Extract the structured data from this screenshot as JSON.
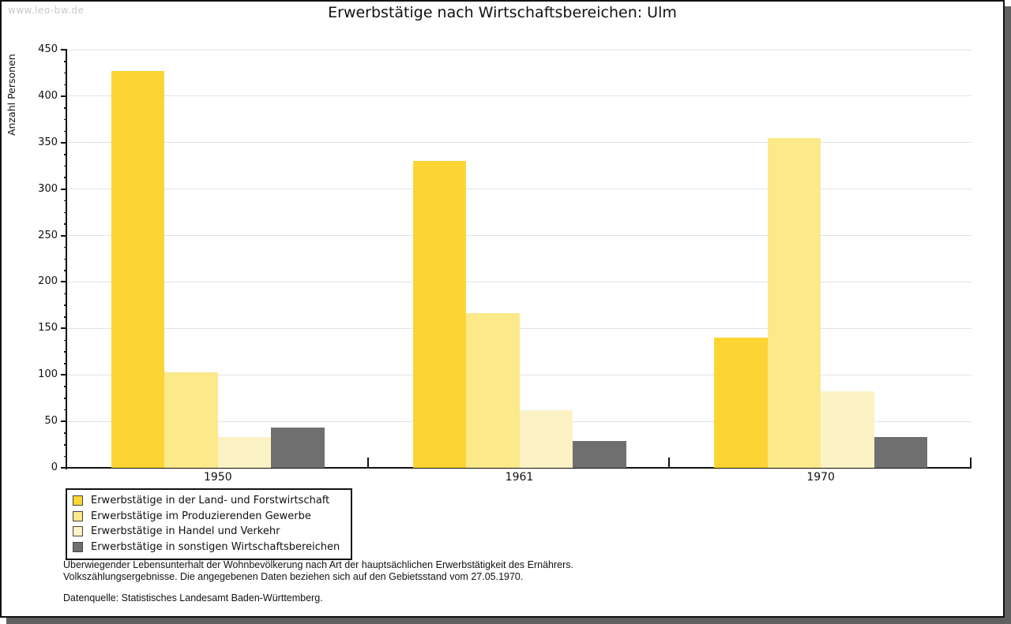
{
  "watermark": "www.leo-bw.de",
  "title": "Erwerbstätige nach Wirtschaftsbereichen: Ulm",
  "chart_data": {
    "type": "bar",
    "title": "Erwerbstätige nach Wirtschaftsbereichen: Ulm",
    "xlabel": "",
    "ylabel": "Anzahl Personen",
    "ylim": [
      0,
      450
    ],
    "ytick_interval": 50,
    "yminor_tick_interval": 12.5,
    "grid": "horizontal-major",
    "legend_position": "bottom-left",
    "categories": [
      "1950",
      "1961",
      "1970"
    ],
    "series": [
      {
        "name": "Erwerbstätige in der Land- und Forstwirtschaft",
        "color": "#FCD535",
        "values": [
          427,
          330,
          140
        ]
      },
      {
        "name": "Erwerbstätige im Produzierenden Gewerbe",
        "color": "#FBE98A",
        "values": [
          103,
          166,
          355
        ]
      },
      {
        "name": "Erwerbstätige in Handel und Verkehr",
        "color": "#FBF3C5",
        "values": [
          33,
          62,
          82
        ]
      },
      {
        "name": "Erwerbstätige in sonstigen Wirtschaftsbereichen",
        "color": "#6F6F6F",
        "values": [
          43,
          29,
          33
        ]
      }
    ]
  },
  "footnote": {
    "line1": "Überwiegender Lebensunterhalt der Wohnbevölkerung nach Art der hauptsächlichen Erwerbstätigkeit des Ernährers.",
    "line2": "Volkszählungsergebnisse. Die angegebenen Daten beziehen sich auf den Gebietsstand vom 27.05.1970."
  },
  "data_source": "Datenquelle: Statistisches Landesamt Baden-Württemberg.",
  "colors": {
    "axis": "#111111",
    "gridline": "#E3E3E3",
    "watermark": "#C9C9C9",
    "frame_shadow": "#616161"
  }
}
